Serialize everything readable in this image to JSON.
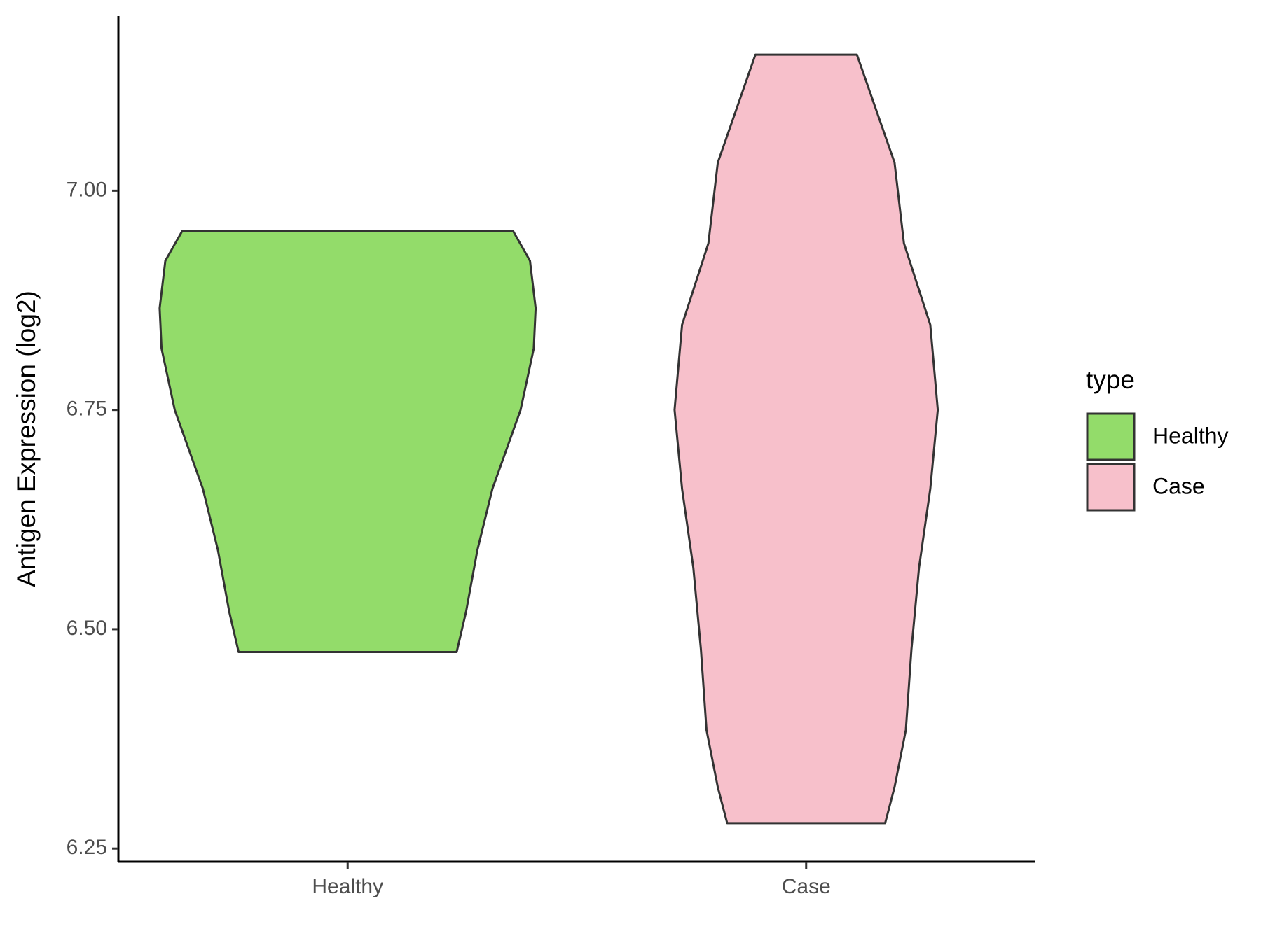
{
  "chart_data": {
    "type": "violin",
    "y_label": "Antigen Expression (log2)",
    "categories": [
      "Healthy",
      "Case"
    ],
    "series": [
      {
        "name": "Healthy",
        "color": "#93dc6a",
        "y": [
          6.954,
          6.92,
          6.866,
          6.82,
          6.75,
          6.66,
          6.59,
          6.52,
          6.474
        ],
        "density": [
          0.88,
          0.97,
          1.0,
          0.99,
          0.92,
          0.77,
          0.69,
          0.63,
          0.58
        ]
      },
      {
        "name": "Case",
        "color": "#f7c0cb",
        "y": [
          7.155,
          7.032,
          6.94,
          6.847,
          6.75,
          6.66,
          6.57,
          6.477,
          6.385,
          6.32,
          6.279
        ],
        "density": [
          0.27,
          0.47,
          0.52,
          0.66,
          0.7,
          0.66,
          0.6,
          0.56,
          0.53,
          0.47,
          0.42
        ]
      }
    ],
    "ylim": [
      6.235,
      7.199
    ],
    "yticks": [
      {
        "value": 6.25,
        "label": "6.25"
      },
      {
        "value": 6.5,
        "label": "6.50"
      },
      {
        "value": 6.75,
        "label": "6.75"
      },
      {
        "value": 7.0,
        "label": "7.00"
      }
    ],
    "grid": false,
    "legend_title": "type",
    "legend_position": "right"
  }
}
